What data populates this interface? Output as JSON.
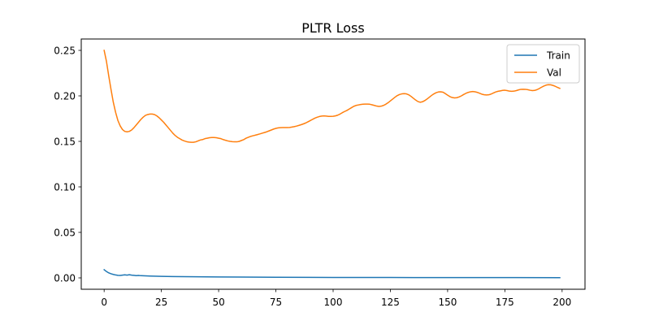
{
  "chart_data": {
    "type": "line",
    "title": "PLTR Loss",
    "xlabel": "",
    "ylabel": "",
    "xlim": [
      -10,
      210
    ],
    "ylim": [
      -0.0125,
      0.2625
    ],
    "xticks": [
      0,
      25,
      50,
      75,
      100,
      125,
      150,
      175,
      200
    ],
    "xtick_labels": [
      "0",
      "25",
      "50",
      "75",
      "100",
      "125",
      "150",
      "175",
      "200"
    ],
    "yticks": [
      0.0,
      0.05,
      0.1,
      0.15,
      0.2,
      0.25
    ],
    "ytick_labels": [
      "0.00",
      "0.05",
      "0.10",
      "0.15",
      "0.20",
      "0.25"
    ],
    "grid": false,
    "legend_position": "upper right",
    "series": [
      {
        "name": "Train",
        "color": "#1f77b4",
        "points": [
          [
            0,
            0.009
          ],
          [
            1,
            0.007
          ],
          [
            2,
            0.0055
          ],
          [
            3,
            0.0045
          ],
          [
            4,
            0.0038
          ],
          [
            5,
            0.0032
          ],
          [
            6,
            0.0028
          ],
          [
            7,
            0.0027
          ],
          [
            8,
            0.003
          ],
          [
            9,
            0.0033
          ],
          [
            10,
            0.003
          ],
          [
            11,
            0.0035
          ],
          [
            12,
            0.003
          ],
          [
            13,
            0.0028
          ],
          [
            14,
            0.0025
          ],
          [
            15,
            0.0027
          ],
          [
            16,
            0.0024
          ],
          [
            18,
            0.0022
          ],
          [
            20,
            0.002
          ],
          [
            25,
            0.0017
          ],
          [
            30,
            0.0015
          ],
          [
            35,
            0.0013
          ],
          [
            40,
            0.0012
          ],
          [
            50,
            0.001
          ],
          [
            60,
            0.0009
          ],
          [
            75,
            0.0007
          ],
          [
            100,
            0.0005
          ],
          [
            125,
            0.0004
          ],
          [
            150,
            0.0003
          ],
          [
            175,
            0.0003
          ],
          [
            199,
            0.0002
          ]
        ]
      },
      {
        "name": "Val",
        "color": "#ff7f0e",
        "points": [
          [
            0,
            0.25
          ],
          [
            1,
            0.238
          ],
          [
            2,
            0.222
          ],
          [
            3,
            0.207
          ],
          [
            4,
            0.193
          ],
          [
            5,
            0.182
          ],
          [
            6,
            0.173
          ],
          [
            7,
            0.167
          ],
          [
            8,
            0.163
          ],
          [
            9,
            0.161
          ],
          [
            10,
            0.1605
          ],
          [
            11,
            0.161
          ],
          [
            12,
            0.1625
          ],
          [
            13,
            0.165
          ],
          [
            14,
            0.168
          ],
          [
            15,
            0.171
          ],
          [
            16,
            0.174
          ],
          [
            17,
            0.1765
          ],
          [
            18,
            0.1785
          ],
          [
            19,
            0.1795
          ],
          [
            20,
            0.18
          ],
          [
            21,
            0.18
          ],
          [
            22,
            0.1795
          ],
          [
            23,
            0.178
          ],
          [
            24,
            0.176
          ],
          [
            25,
            0.1735
          ],
          [
            26,
            0.171
          ],
          [
            27,
            0.168
          ],
          [
            28,
            0.165
          ],
          [
            29,
            0.162
          ],
          [
            30,
            0.159
          ],
          [
            31,
            0.1565
          ],
          [
            32,
            0.1545
          ],
          [
            33,
            0.153
          ],
          [
            34,
            0.1515
          ],
          [
            35,
            0.1505
          ],
          [
            36,
            0.1497
          ],
          [
            37,
            0.1492
          ],
          [
            38,
            0.149
          ],
          [
            39,
            0.149
          ],
          [
            40,
            0.1495
          ],
          [
            41,
            0.1505
          ],
          [
            42,
            0.1515
          ],
          [
            43,
            0.152
          ],
          [
            44,
            0.153
          ],
          [
            45,
            0.1535
          ],
          [
            46,
            0.154
          ],
          [
            47,
            0.1542
          ],
          [
            48,
            0.1542
          ],
          [
            49,
            0.154
          ],
          [
            50,
            0.1535
          ],
          [
            51,
            0.153
          ],
          [
            52,
            0.152
          ],
          [
            53,
            0.1512
          ],
          [
            54,
            0.1505
          ],
          [
            55,
            0.15
          ],
          [
            56,
            0.1497
          ],
          [
            57,
            0.1495
          ],
          [
            58,
            0.1495
          ],
          [
            59,
            0.15
          ],
          [
            60,
            0.151
          ],
          [
            61,
            0.152
          ],
          [
            62,
            0.1535
          ],
          [
            63,
            0.1545
          ],
          [
            64,
            0.1555
          ],
          [
            65,
            0.1562
          ],
          [
            66,
            0.1568
          ],
          [
            67,
            0.1575
          ],
          [
            68,
            0.1582
          ],
          [
            69,
            0.159
          ],
          [
            70,
            0.1597
          ],
          [
            71,
            0.1605
          ],
          [
            72,
            0.1615
          ],
          [
            73,
            0.1625
          ],
          [
            74,
            0.1635
          ],
          [
            75,
            0.1643
          ],
          [
            76,
            0.1648
          ],
          [
            77,
            0.1651
          ],
          [
            78,
            0.1652
          ],
          [
            79,
            0.1652
          ],
          [
            80,
            0.1652
          ],
          [
            81,
            0.1653
          ],
          [
            82,
            0.1657
          ],
          [
            83,
            0.1662
          ],
          [
            84,
            0.1668
          ],
          [
            85,
            0.1675
          ],
          [
            86,
            0.1683
          ],
          [
            87,
            0.1692
          ],
          [
            88,
            0.1702
          ],
          [
            89,
            0.1715
          ],
          [
            90,
            0.1728
          ],
          [
            91,
            0.1742
          ],
          [
            92,
            0.1755
          ],
          [
            93,
            0.1765
          ],
          [
            94,
            0.1773
          ],
          [
            95,
            0.1778
          ],
          [
            96,
            0.178
          ],
          [
            97,
            0.1778
          ],
          [
            98,
            0.1775
          ],
          [
            99,
            0.1775
          ],
          [
            100,
            0.1776
          ],
          [
            101,
            0.178
          ],
          [
            102,
            0.1788
          ],
          [
            103,
            0.18
          ],
          [
            104,
            0.1815
          ],
          [
            105,
            0.1828
          ],
          [
            106,
            0.184
          ],
          [
            107,
            0.1855
          ],
          [
            108,
            0.187
          ],
          [
            109,
            0.1885
          ],
          [
            110,
            0.1895
          ],
          [
            111,
            0.19
          ],
          [
            112,
            0.1905
          ],
          [
            113,
            0.1908
          ],
          [
            114,
            0.191
          ],
          [
            115,
            0.191
          ],
          [
            116,
            0.1908
          ],
          [
            117,
            0.1902
          ],
          [
            118,
            0.1895
          ],
          [
            119,
            0.1888
          ],
          [
            120,
            0.1884
          ],
          [
            121,
            0.1887
          ],
          [
            122,
            0.1895
          ],
          [
            123,
            0.1908
          ],
          [
            124,
            0.1925
          ],
          [
            125,
            0.1945
          ],
          [
            126,
            0.1965
          ],
          [
            127,
            0.1985
          ],
          [
            128,
            0.2003
          ],
          [
            129,
            0.2015
          ],
          [
            130,
            0.2022
          ],
          [
            131,
            0.2025
          ],
          [
            132,
            0.2022
          ],
          [
            133,
            0.2012
          ],
          [
            134,
            0.1995
          ],
          [
            135,
            0.1975
          ],
          [
            136,
            0.1955
          ],
          [
            137,
            0.1938
          ],
          [
            138,
            0.193
          ],
          [
            139,
            0.1935
          ],
          [
            140,
            0.1948
          ],
          [
            141,
            0.1965
          ],
          [
            142,
            0.1985
          ],
          [
            143,
            0.2005
          ],
          [
            144,
            0.2022
          ],
          [
            145,
            0.2035
          ],
          [
            146,
            0.2043
          ],
          [
            147,
            0.2045
          ],
          [
            148,
            0.204
          ],
          [
            149,
            0.2025
          ],
          [
            150,
            0.2008
          ],
          [
            151,
            0.1992
          ],
          [
            152,
            0.1982
          ],
          [
            153,
            0.1978
          ],
          [
            154,
            0.198
          ],
          [
            155,
            0.1988
          ],
          [
            156,
            0.2
          ],
          [
            157,
            0.2015
          ],
          [
            158,
            0.2028
          ],
          [
            159,
            0.2038
          ],
          [
            160,
            0.2045
          ],
          [
            161,
            0.2048
          ],
          [
            162,
            0.2045
          ],
          [
            163,
            0.2038
          ],
          [
            164,
            0.2028
          ],
          [
            165,
            0.2018
          ],
          [
            166,
            0.2012
          ],
          [
            167,
            0.201
          ],
          [
            168,
            0.2012
          ],
          [
            169,
            0.202
          ],
          [
            170,
            0.2032
          ],
          [
            171,
            0.2043
          ],
          [
            172,
            0.205
          ],
          [
            173,
            0.2055
          ],
          [
            174,
            0.206
          ],
          [
            175,
            0.2062
          ],
          [
            176,
            0.2058
          ],
          [
            177,
            0.2052
          ],
          [
            178,
            0.205
          ],
          [
            179,
            0.2052
          ],
          [
            180,
            0.2058
          ],
          [
            181,
            0.2066
          ],
          [
            182,
            0.2072
          ],
          [
            183,
            0.2073
          ],
          [
            184,
            0.2072
          ],
          [
            185,
            0.2068
          ],
          [
            186,
            0.2062
          ],
          [
            187,
            0.2058
          ],
          [
            188,
            0.206
          ],
          [
            189,
            0.2068
          ],
          [
            190,
            0.208
          ],
          [
            191,
            0.2095
          ],
          [
            192,
            0.2108
          ],
          [
            193,
            0.2118
          ],
          [
            194,
            0.2123
          ],
          [
            195,
            0.2122
          ],
          [
            196,
            0.2115
          ],
          [
            197,
            0.2105
          ],
          [
            198,
            0.2093
          ],
          [
            199,
            0.2082
          ]
        ]
      }
    ]
  }
}
